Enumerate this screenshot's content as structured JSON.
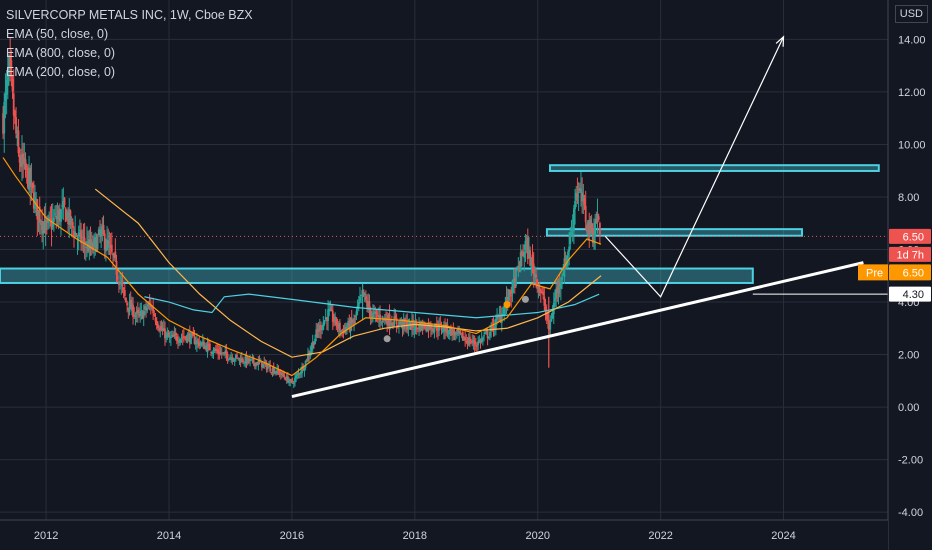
{
  "header": {
    "symbol": "SILVERCORP METALS INC, 1W, Cboe BZX",
    "indicators": [
      "EMA (50, close, 0)",
      "EMA (800, close, 0)",
      "EMA (200, close, 0)"
    ],
    "currency": "USD"
  },
  "badges": {
    "last_price": "6.50",
    "countdown": "1d 7h",
    "pre_label": "Pre",
    "pre_price": "6.50",
    "level": "4.30"
  },
  "colors": {
    "background": "#131722",
    "grid": "#2a2e39",
    "up": "#26a69a",
    "down": "#ef5350",
    "ema50": "#ff9800",
    "ema200": "#ffb74d",
    "ema800": "#4dd0e1",
    "zone": "#4dd0e1",
    "price_badge": "#ef5350",
    "pre_badge": "#ff9800"
  },
  "chart_data": {
    "type": "candlestick",
    "x_ticks": [
      "2012",
      "2014",
      "2016",
      "2018",
      "2020",
      "2022",
      "2024"
    ],
    "x_tick_years": [
      2012,
      2014,
      2016,
      2018,
      2020,
      2022,
      2024
    ],
    "y_ticks": [
      14,
      12,
      10,
      8,
      6,
      4,
      2,
      0,
      -2,
      -4
    ],
    "y_tick_labels": [
      "14.00",
      "12.00",
      "10.00",
      "8.00",
      "6.00",
      "4.00",
      "2.00",
      "0.00",
      "-2.00",
      "-4.00"
    ],
    "xlim": [
      2011.25,
      2025.7
    ],
    "ylim": [
      -4.3,
      15.5
    ],
    "close_path": [
      [
        2011.3,
        11.0
      ],
      [
        2011.4,
        12.8
      ],
      [
        2011.55,
        9.5
      ],
      [
        2011.7,
        8.8
      ],
      [
        2011.85,
        7.5
      ],
      [
        2012.0,
        6.8
      ],
      [
        2012.3,
        7.5
      ],
      [
        2012.5,
        6.5
      ],
      [
        2012.75,
        6.0
      ],
      [
        2012.9,
        6.6
      ],
      [
        2013.1,
        5.6
      ],
      [
        2013.3,
        4.0
      ],
      [
        2013.5,
        3.4
      ],
      [
        2013.7,
        3.9
      ],
      [
        2013.85,
        3.0
      ],
      [
        2014.0,
        2.6
      ],
      [
        2014.3,
        2.7
      ],
      [
        2014.6,
        2.3
      ],
      [
        2014.9,
        2.0
      ],
      [
        2015.2,
        1.8
      ],
      [
        2015.5,
        1.65
      ],
      [
        2015.8,
        1.3
      ],
      [
        2016.0,
        0.9
      ],
      [
        2016.2,
        1.6
      ],
      [
        2016.4,
        2.8
      ],
      [
        2016.6,
        3.6
      ],
      [
        2016.8,
        2.9
      ],
      [
        2017.0,
        3.2
      ],
      [
        2017.15,
        4.3
      ],
      [
        2017.3,
        3.5
      ],
      [
        2017.6,
        3.3
      ],
      [
        2017.9,
        3.1
      ],
      [
        2018.2,
        3.1
      ],
      [
        2018.5,
        3.0
      ],
      [
        2018.8,
        2.6
      ],
      [
        2019.0,
        2.4
      ],
      [
        2019.2,
        2.8
      ],
      [
        2019.4,
        3.5
      ],
      [
        2019.6,
        4.6
      ],
      [
        2019.8,
        6.2
      ],
      [
        2019.95,
        5.1
      ],
      [
        2020.1,
        4.0
      ],
      [
        2020.18,
        2.9
      ],
      [
        2020.3,
        4.4
      ],
      [
        2020.45,
        5.5
      ],
      [
        2020.55,
        6.7
      ],
      [
        2020.62,
        8.3
      ],
      [
        2020.72,
        7.9
      ],
      [
        2020.8,
        7.0
      ],
      [
        2020.9,
        6.6
      ],
      [
        2020.97,
        7.3
      ],
      [
        2021.03,
        6.5
      ]
    ],
    "ema50": [
      [
        2011.3,
        9.5
      ],
      [
        2011.5,
        8.8
      ],
      [
        2012.0,
        7.2
      ],
      [
        2012.5,
        6.4
      ],
      [
        2013.0,
        5.7
      ],
      [
        2013.5,
        4.3
      ],
      [
        2014.0,
        3.3
      ],
      [
        2014.5,
        2.7
      ],
      [
        2015.0,
        2.2
      ],
      [
        2015.5,
        1.75
      ],
      [
        2016.0,
        1.2
      ],
      [
        2016.4,
        1.9
      ],
      [
        2016.8,
        2.8
      ],
      [
        2017.2,
        3.4
      ],
      [
        2017.8,
        3.3
      ],
      [
        2018.5,
        3.1
      ],
      [
        2019.0,
        2.8
      ],
      [
        2019.5,
        3.4
      ],
      [
        2019.9,
        4.7
      ],
      [
        2020.2,
        4.5
      ],
      [
        2020.5,
        5.6
      ],
      [
        2020.8,
        6.4
      ],
      [
        2021.03,
        6.2
      ]
    ],
    "ema200": [
      [
        2012.8,
        8.3
      ],
      [
        2013.5,
        7.0
      ],
      [
        2014.0,
        5.5
      ],
      [
        2014.5,
        4.3
      ],
      [
        2015.0,
        3.3
      ],
      [
        2015.5,
        2.5
      ],
      [
        2016.0,
        1.9
      ],
      [
        2016.5,
        2.1
      ],
      [
        2017.0,
        2.7
      ],
      [
        2017.5,
        3.0
      ],
      [
        2018.0,
        3.15
      ],
      [
        2018.5,
        3.05
      ],
      [
        2019.0,
        2.9
      ],
      [
        2019.5,
        3.0
      ],
      [
        2020.0,
        3.4
      ],
      [
        2020.5,
        4.0
      ],
      [
        2021.03,
        5.0
      ]
    ],
    "ema800": [
      [
        2013.6,
        4.2
      ],
      [
        2014.0,
        4.0
      ],
      [
        2014.4,
        3.7
      ],
      [
        2014.7,
        3.6
      ],
      [
        2014.9,
        4.2
      ],
      [
        2015.3,
        4.3
      ],
      [
        2016.0,
        4.1
      ],
      [
        2017.0,
        3.8
      ],
      [
        2018.0,
        3.6
      ],
      [
        2019.0,
        3.4
      ],
      [
        2019.5,
        3.5
      ],
      [
        2020.0,
        3.6
      ],
      [
        2020.6,
        3.9
      ],
      [
        2021.0,
        4.3
      ]
    ],
    "zones": [
      {
        "x0": 2020.2,
        "x1": 2025.55,
        "y": 9.1,
        "h": 0.22
      },
      {
        "x0": 2020.15,
        "x1": 2024.3,
        "y": 6.65,
        "h": 0.25
      },
      {
        "x0": 2011.25,
        "x1": 2023.5,
        "y": 5.0,
        "h": 0.55
      }
    ],
    "trendline": [
      [
        2016.0,
        0.4
      ],
      [
        2025.3,
        5.5
      ]
    ],
    "projection": [
      [
        2021.1,
        6.5
      ],
      [
        2022.0,
        4.2
      ],
      [
        2024.0,
        14.1
      ]
    ],
    "level_line": 4.3,
    "price_line": 6.5,
    "markers": [
      {
        "x": 2019.5,
        "y": 3.9,
        "color": "#ff9800"
      },
      {
        "x": 2019.8,
        "y": 4.1,
        "color": "#9e9e9e"
      },
      {
        "x": 2017.55,
        "y": 2.6,
        "color": "#9e9e9e"
      }
    ]
  }
}
